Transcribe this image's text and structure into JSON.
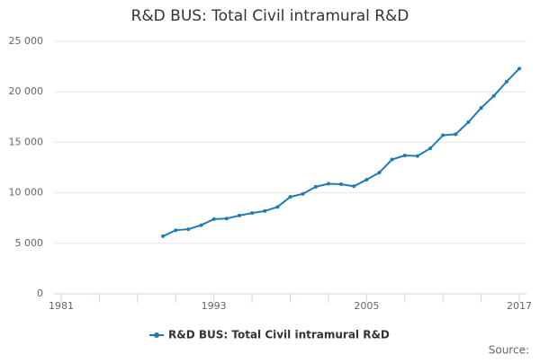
{
  "chart_data": {
    "type": "line",
    "title": "R&D BUS: Total Civil intramural R&D",
    "x": [
      1989,
      1990,
      1991,
      1992,
      1993,
      1994,
      1995,
      1996,
      1997,
      1998,
      1999,
      2000,
      2001,
      2002,
      2003,
      2004,
      2005,
      2006,
      2007,
      2008,
      2009,
      2010,
      2011,
      2012,
      2013,
      2014,
      2015,
      2016,
      2017
    ],
    "series": [
      {
        "name": "R&D BUS: Total Civil intramural R&D",
        "color": "#1f7bb6",
        "values": [
          5700,
          6300,
          6400,
          6800,
          7400,
          7450,
          7750,
          8000,
          8200,
          8600,
          9600,
          9900,
          10600,
          10900,
          10850,
          10650,
          11300,
          12000,
          13300,
          13700,
          13650,
          14400,
          15700,
          15800,
          17000,
          18400,
          19600,
          21000,
          22300
        ]
      }
    ],
    "xlim": [
      1981,
      2017
    ],
    "xticks": [
      1981,
      1993,
      2005,
      2017
    ],
    "ylim": [
      0,
      25000
    ],
    "yticks": [
      0,
      {
        "value": 5000,
        "label": "5 000"
      },
      {
        "value": 10000,
        "label": "10 000"
      },
      {
        "value": 15000,
        "label": "15 000"
      },
      {
        "value": 20000,
        "label": "20 000"
      },
      {
        "value": 25000,
        "label": "25 000"
      }
    ],
    "grid": true,
    "legend": "bottom",
    "source": "Source:"
  }
}
